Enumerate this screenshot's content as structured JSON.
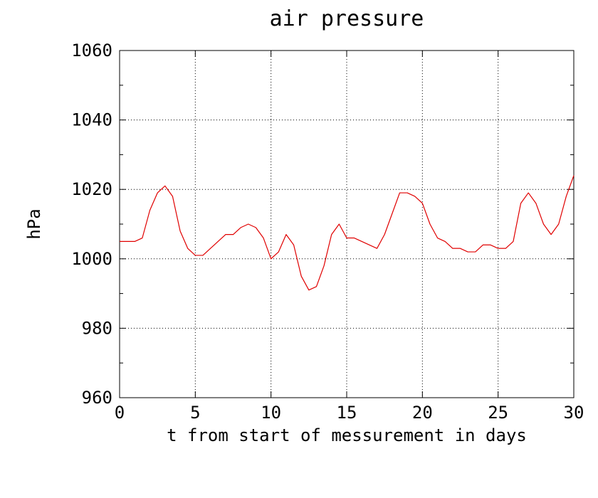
{
  "chart_data": {
    "type": "line",
    "title": "air pressure",
    "xlabel": "t from start of messurement in days",
    "ylabel": "hPa",
    "xlim": [
      0,
      30
    ],
    "ylim": [
      960,
      1060
    ],
    "xticks": [
      0,
      5,
      10,
      15,
      20,
      25,
      30
    ],
    "xtick_labels": [
      "0",
      "5",
      "10",
      "15",
      "20",
      "25",
      "30"
    ],
    "yticks": [
      960,
      980,
      1000,
      1020,
      1040,
      1060
    ],
    "ytick_labels": [
      "960",
      "980",
      "1000",
      "1020",
      "1040",
      "1060"
    ],
    "grid": true,
    "legend": "none",
    "series": [
      {
        "color": "#e00000",
        "x": [
          0,
          0.5,
          1,
          1.5,
          2,
          2.5,
          3,
          3.5,
          4,
          4.5,
          5,
          5.5,
          6,
          6.5,
          7,
          7.5,
          8,
          8.5,
          9,
          9.5,
          10,
          10.5,
          11,
          11.5,
          12,
          12.5,
          13,
          13.5,
          14,
          14.5,
          15,
          15.5,
          16,
          16.5,
          17,
          17.5,
          18,
          18.5,
          19,
          19.5,
          20,
          20.5,
          21,
          21.5,
          22,
          22.5,
          23,
          23.5,
          24,
          24.5,
          25,
          25.5,
          26,
          26.5,
          27,
          27.5,
          28,
          28.5,
          29,
          29.5,
          30
        ],
        "y": [
          1005,
          1005,
          1005,
          1006,
          1014,
          1019,
          1021,
          1018,
          1008,
          1003,
          1001,
          1001,
          1003,
          1005,
          1007,
          1007,
          1009,
          1010,
          1009,
          1006,
          1000,
          1002,
          1007,
          1004,
          995,
          991,
          992,
          998,
          1007,
          1010,
          1006,
          1006,
          1005,
          1004,
          1003,
          1007,
          1013,
          1019,
          1019,
          1018,
          1016,
          1010,
          1006,
          1005,
          1003,
          1003,
          1002,
          1002,
          1004,
          1004,
          1003,
          1003,
          1005,
          1016,
          1019,
          1016,
          1010,
          1007,
          1010,
          1018,
          1024
        ]
      }
    ]
  }
}
